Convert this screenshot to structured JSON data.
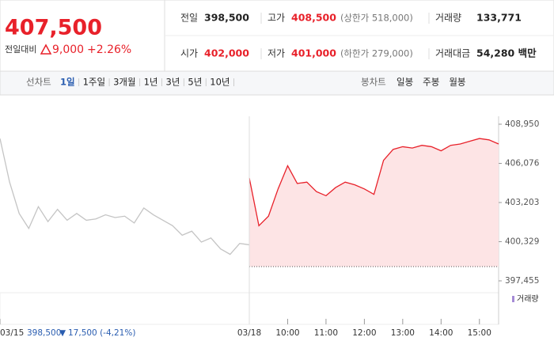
{
  "header": {
    "price": "407,500",
    "change_label": "전일대비",
    "change": "9,000",
    "change_pct": "+2.26%"
  },
  "stats": [
    [
      {
        "label": "전일",
        "value": "398,500"
      },
      {
        "label": "고가",
        "value": "408,500",
        "sub": "(상한가 518,000)"
      },
      {
        "label": "거래량",
        "value": "133,771"
      }
    ],
    [
      {
        "label": "시가",
        "value": "402,000"
      },
      {
        "label": "저가",
        "value": "401,000",
        "sub": "(하한가 279,000)"
      },
      {
        "label": "거래대금",
        "value": "54,280 백만"
      }
    ]
  ],
  "tabs": {
    "line_label": "선차트",
    "line_items": [
      "1일",
      "1주일",
      "3개월",
      "1년",
      "3년",
      "5년",
      "10년"
    ],
    "candle_label": "봉차트",
    "candle_items": [
      "일봉",
      "주봉",
      "월봉"
    ]
  },
  "chart_data": {
    "type": "line",
    "xlim": [
      0,
      13
    ],
    "ylim": [
      397455,
      408950
    ],
    "yticks": [
      {
        "value": 408950,
        "label": "408,950"
      },
      {
        "value": 406076,
        "label": "406,076"
      },
      {
        "value": 403203,
        "label": "403,203"
      },
      {
        "value": 400329,
        "label": "400,329"
      },
      {
        "value": 397455,
        "label": "397,455"
      }
    ],
    "xticks": [
      {
        "value": 0,
        "label": "03/15"
      },
      {
        "value": 6.5,
        "label": "03/18"
      },
      {
        "value": 7.5,
        "label": "10:00"
      },
      {
        "value": 8.5,
        "label": "11:00"
      },
      {
        "value": 9.5,
        "label": "12:00"
      },
      {
        "value": 10.5,
        "label": "13:00"
      },
      {
        "value": 11.5,
        "label": "14:00"
      },
      {
        "value": 12.5,
        "label": "15:00"
      }
    ],
    "reference_line": 398500,
    "volume_legend": "거래량",
    "series": [
      {
        "color": "#c4c4c4",
        "x": [
          0,
          0.25,
          0.5,
          0.75,
          1,
          1.25,
          1.5,
          1.75,
          2,
          2.25,
          2.5,
          2.75,
          3,
          3.25,
          3.5,
          3.75,
          4,
          4.25,
          4.5,
          4.75,
          5,
          5.25,
          5.5,
          5.75,
          6,
          6.25,
          6.5
        ],
        "values": [
          407900,
          404700,
          402400,
          401300,
          402900,
          401800,
          402700,
          401900,
          402400,
          401900,
          402000,
          402300,
          402100,
          402200,
          401700,
          402800,
          402300,
          401900,
          401500,
          400800,
          401100,
          400300,
          400600,
          399800,
          399400,
          400200,
          400100
        ]
      },
      {
        "color": "#e8212a",
        "fill": "#fde4e5",
        "x": [
          6.5,
          6.75,
          7,
          7.25,
          7.5,
          7.75,
          8,
          8.25,
          8.5,
          8.75,
          9,
          9.25,
          9.5,
          9.75,
          10,
          10.25,
          10.5,
          10.75,
          11,
          11.25,
          11.5,
          11.75,
          12,
          12.25,
          12.5,
          12.75,
          13
        ],
        "values": [
          405000,
          401500,
          402200,
          404200,
          405900,
          404600,
          404700,
          404000,
          403700,
          404300,
          404700,
          404500,
          404200,
          403800,
          406300,
          407100,
          407300,
          407200,
          407400,
          407300,
          407000,
          407400,
          407500,
          407700,
          407900,
          407800,
          407500
        ]
      }
    ],
    "prev_info": {
      "price": "398,500",
      "change": "17,500 (-4,21%)"
    }
  }
}
